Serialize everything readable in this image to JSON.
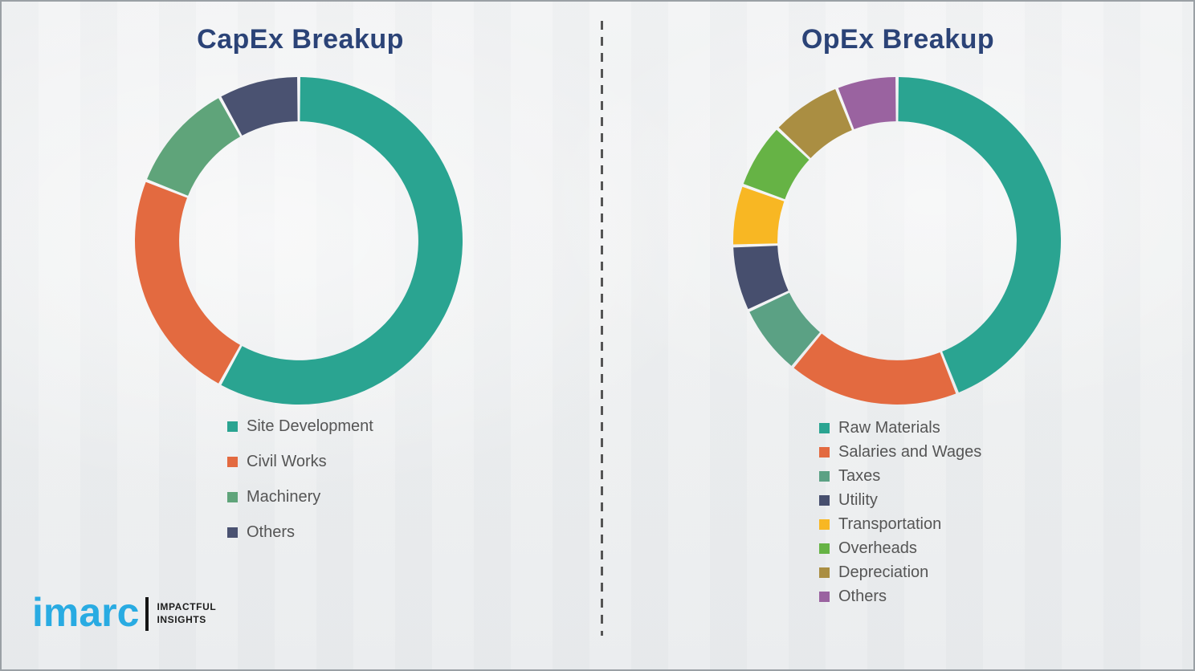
{
  "page": {
    "background_color": "#eef0f1",
    "border_color": "#9aa0a5",
    "title_color": "#2b4377",
    "legend_text_color": "#555555"
  },
  "logo": {
    "brand": "imarc",
    "tagline_line1": "IMPACTFUL",
    "tagline_line2": "INSIGHTS",
    "brand_color": "#29abe2"
  },
  "chart_data": [
    {
      "type": "pie",
      "variant": "donut",
      "title": "CapEx Breakup",
      "title_color": "#2b4377",
      "legend_position": "below-left",
      "start_angle": 0,
      "direction": "clockwise",
      "inner_radius_ratio": 0.73,
      "units": "percent",
      "segments": [
        {
          "label": "Site Development",
          "value": 58,
          "color": "#2aa491"
        },
        {
          "label": "Civil Works",
          "value": 23,
          "color": "#e36a40"
        },
        {
          "label": "Machinery",
          "value": 11,
          "color": "#5fa47a"
        },
        {
          "label": "Others",
          "value": 8,
          "color": "#4a5271"
        }
      ]
    },
    {
      "type": "pie",
      "variant": "donut",
      "title": "OpEx Breakup",
      "title_color": "#2b4377",
      "legend_position": "below-left",
      "start_angle": 0,
      "direction": "clockwise",
      "inner_radius_ratio": 0.73,
      "units": "percent",
      "segments": [
        {
          "label": "Raw Materials",
          "value": 44,
          "color": "#2aa491"
        },
        {
          "label": "Salaries and Wages",
          "value": 17,
          "color": "#e36a40"
        },
        {
          "label": "Taxes",
          "value": 7,
          "color": "#5ba184"
        },
        {
          "label": "Utility",
          "value": 6.5,
          "color": "#474f6e"
        },
        {
          "label": "Transportation",
          "value": 6,
          "color": "#f8b723"
        },
        {
          "label": "Overheads",
          "value": 6.5,
          "color": "#66b345"
        },
        {
          "label": "Depreciation",
          "value": 7,
          "color": "#aa8e42"
        },
        {
          "label": "Others",
          "value": 6,
          "color": "#9a63a0"
        }
      ]
    }
  ]
}
